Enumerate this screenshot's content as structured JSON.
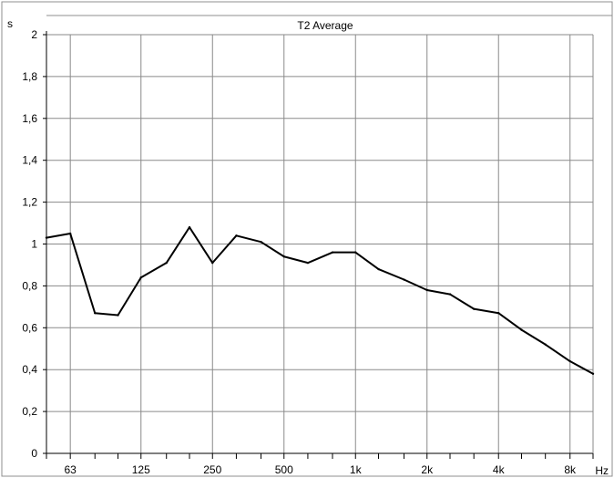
{
  "chart_data": {
    "type": "line",
    "title": "T2 Average",
    "xlabel": "Hz",
    "ylabel": "s",
    "xscale": "log",
    "grid": true,
    "ylim": [
      0,
      2
    ],
    "yticks": [
      {
        "value": 0,
        "label": "0"
      },
      {
        "value": 0.2,
        "label": "0,2"
      },
      {
        "value": 0.4,
        "label": "0,4"
      },
      {
        "value": 0.6,
        "label": "0,6"
      },
      {
        "value": 0.8,
        "label": "0,8"
      },
      {
        "value": 1.0,
        "label": "1"
      },
      {
        "value": 1.2,
        "label": "1,2"
      },
      {
        "value": 1.4,
        "label": "1,4"
      },
      {
        "value": 1.6,
        "label": "1,6"
      },
      {
        "value": 1.8,
        "label": "1,8"
      },
      {
        "value": 2.0,
        "label": "2"
      }
    ],
    "xticks": [
      {
        "value": 63,
        "label": "63"
      },
      {
        "value": 125,
        "label": "125"
      },
      {
        "value": 250,
        "label": "250"
      },
      {
        "value": 500,
        "label": "500"
      },
      {
        "value": 1000,
        "label": "1k"
      },
      {
        "value": 2000,
        "label": "2k"
      },
      {
        "value": 4000,
        "label": "4k"
      },
      {
        "value": 8000,
        "label": "8k"
      }
    ],
    "series": [
      {
        "x": [
          50,
          63,
          80,
          100,
          125,
          160,
          200,
          250,
          315,
          400,
          500,
          630,
          800,
          1000,
          1250,
          1600,
          2000,
          2500,
          3150,
          4000,
          5000,
          6300,
          8000,
          10000
        ],
        "values": [
          1.03,
          1.05,
          0.67,
          0.66,
          0.84,
          0.91,
          1.08,
          0.91,
          1.04,
          1.01,
          0.94,
          0.91,
          0.96,
          0.96,
          0.88,
          0.83,
          0.78,
          0.76,
          0.69,
          0.67,
          0.59,
          0.52,
          0.44,
          0.38
        ]
      }
    ]
  }
}
